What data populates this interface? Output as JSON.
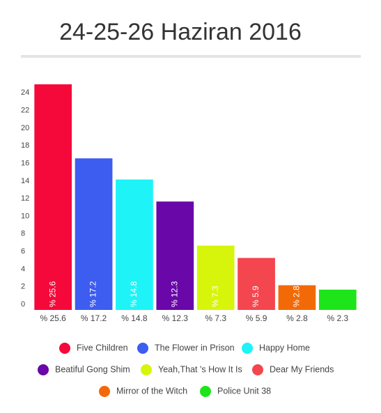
{
  "chart_data": {
    "type": "bar",
    "title": "24-25-26 Haziran 2016",
    "categories": [
      "% 25.6",
      "% 17.2",
      "% 14.8",
      "% 12.3",
      "% 7.3",
      "% 5.9",
      "% 2.8",
      "% 2.3"
    ],
    "values": [
      25.6,
      17.2,
      14.8,
      12.3,
      7.3,
      5.9,
      2.8,
      2.3
    ],
    "value_labels": [
      "% 25.6",
      "% 17.2",
      "% 14.8",
      "% 12.3",
      "% 7.3",
      "% 5.9",
      "% 2.8",
      null
    ],
    "colors": [
      "#f5093a",
      "#3d5cf0",
      "#1ef3f8",
      "#6a07a8",
      "#d7f50a",
      "#f4464f",
      "#f26a07",
      "#1ee51a"
    ],
    "legend": [
      "Five Children",
      "The Flower in Prison",
      "Happy Home",
      "Beatiful Gong Shim",
      "Yeah,That 's How It Is",
      "Dear My Friends",
      "Mirror of the Witch",
      "Police Unit 38"
    ],
    "ylim": [
      0,
      26
    ],
    "yticks": [
      0,
      2,
      4,
      6,
      8,
      10,
      12,
      14,
      16,
      18,
      20,
      22,
      24
    ],
    "grid": false
  }
}
